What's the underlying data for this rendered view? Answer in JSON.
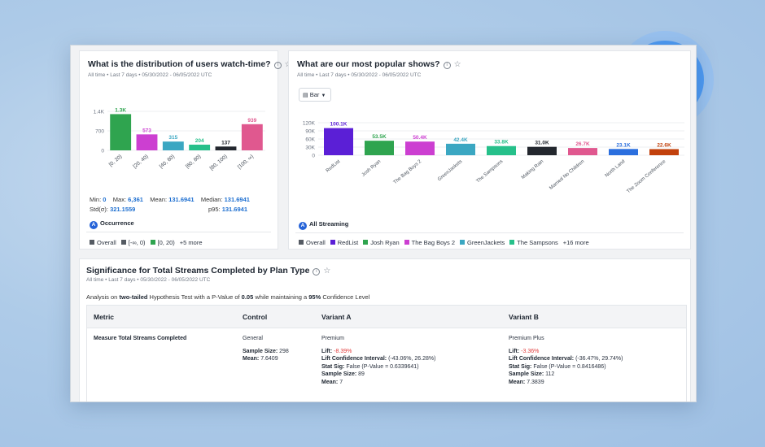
{
  "card1": {
    "title": "What is the distribution of users watch-time?",
    "subtitle": "All time • Last 7 days • 05/30/2022 - 06/05/2022 UTC",
    "stats": {
      "min_label": "Min:",
      "min_value": "0",
      "max_label": "Max:",
      "max_value": "6,361",
      "mean_label": "Mean:",
      "mean_value": "131.6941",
      "median_label": "Median:",
      "median_value": "131.6941",
      "std_label": "Std(σ):",
      "std_value": "321.1559",
      "p95_label": "p95:",
      "p95_value": "131.6941"
    },
    "badge_letter": "A",
    "badge_label": "Occurrence",
    "legend": [
      {
        "label": "Overall",
        "color": "#555b63"
      },
      {
        "label": "[-∞, 0)",
        "color": "#555b63"
      },
      {
        "label": "[0, 20)",
        "color": "#2fa44f"
      }
    ],
    "legend_more": "+5 more"
  },
  "card2": {
    "title": "What are our most popular shows?",
    "subtitle": "All time • Last 7 days • 05/30/2022 - 06/05/2022 UTC",
    "dropdown_label": "Bar",
    "badge_letter": "A",
    "badge_label": "All Streaming",
    "legend": [
      {
        "label": "Overall",
        "color": "#555b63"
      },
      {
        "label": "RedList",
        "color": "#5b1fd6"
      },
      {
        "label": "Josh Ryan",
        "color": "#2fa44f"
      },
      {
        "label": "The Bag Boys 2",
        "color": "#cc3fd1"
      },
      {
        "label": "GreenJackets",
        "color": "#3ba7c2"
      },
      {
        "label": "The Sampsons",
        "color": "#26c08a"
      }
    ],
    "legend_more": "+16 more"
  },
  "card3": {
    "title": "Significance for Total Streams Completed by Plan Type",
    "subtitle": "All time • Last 7 days • 05/30/2022 - 06/05/2022 UTC",
    "analysis_prefix": "Analysis on",
    "analysis_tail": "two-tailed",
    "analysis_mid": "Hypothesis Test with a P-Value of",
    "analysis_p": "0.05",
    "analysis_mid2": "while maintaining a",
    "analysis_conf": "95%",
    "analysis_end": "Confidence Level",
    "columns": [
      "Metric",
      "Control",
      "Variant A",
      "Variant B"
    ],
    "metric": "Measure Total Streams Completed",
    "control": {
      "plan": "General",
      "sample_label": "Sample Size:",
      "sample": "298",
      "mean_label": "Mean:",
      "mean": "7.6409"
    },
    "variant_a": {
      "plan": "Premium",
      "lift_label": "Lift:",
      "lift": "-8.39%",
      "lci_label": "Lift Confidence Interval:",
      "lci": "(-43.06%, 26.28%)",
      "sig_label": "Stat Sig:",
      "sig": "False (P-Value = 0.6339641)",
      "sample_label": "Sample Size:",
      "sample": "89",
      "mean_label": "Mean:",
      "mean": "7"
    },
    "variant_b": {
      "plan": "Premium Plus",
      "lift_label": "Lift:",
      "lift": "-3.36%",
      "lci_label": "Lift Confidence Interval:",
      "lci": "(-36.47%, 29.74%)",
      "sig_label": "Stat Sig:",
      "sig": "False (P-Value = 0.8416486)",
      "sample_label": "Sample Size:",
      "sample": "112",
      "mean_label": "Mean:",
      "mean": "7.3839"
    }
  },
  "logo": {
    "icon": "grid-logo-icon",
    "color": "#1877ef"
  },
  "chart_data": [
    {
      "type": "bar",
      "categories": [
        "[0, 20)",
        "[20, 40)",
        "[40, 60)",
        "[60, 80)",
        "[80, 100)",
        "[100, ∞)"
      ],
      "values": [
        1300,
        573,
        315,
        204,
        137,
        939
      ],
      "labels": [
        "1.3K",
        "573",
        "315",
        "204",
        "137",
        "939"
      ],
      "colors": [
        "#2fa44f",
        "#cc3fd1",
        "#3ba7c2",
        "#26c08a",
        "#23272e",
        "#e0588f"
      ],
      "yticks": [
        "1.4K",
        "700",
        "0"
      ],
      "ytick_values": [
        1400,
        700,
        0
      ],
      "ylim": [
        0,
        1400
      ],
      "grid": true
    },
    {
      "type": "bar",
      "categories": [
        "RedList",
        "Josh Ryan",
        "The Bag Boys 2",
        "GreenJackets",
        "The Sampsons",
        "Making Rain",
        "Married No Children",
        "North Land",
        "The Zoom Conference"
      ],
      "values": [
        100100,
        53500,
        50400,
        42400,
        33800,
        31000,
        26700,
        23100,
        22600
      ],
      "labels": [
        "100.1K",
        "53.5K",
        "50.4K",
        "42.4K",
        "33.8K",
        "31.0K",
        "26.7K",
        "23.1K",
        "22.6K"
      ],
      "colors": [
        "#5b1fd6",
        "#2fa44f",
        "#cc3fd1",
        "#3ba7c2",
        "#26c08a",
        "#23272e",
        "#e0588f",
        "#2b6fde",
        "#c2410c"
      ],
      "yticks": [
        "120K",
        "90K",
        "60K",
        "30K",
        "0"
      ],
      "ytick_values": [
        120000,
        90000,
        60000,
        30000,
        0
      ],
      "ylim": [
        0,
        120000
      ],
      "grid": true
    }
  ]
}
